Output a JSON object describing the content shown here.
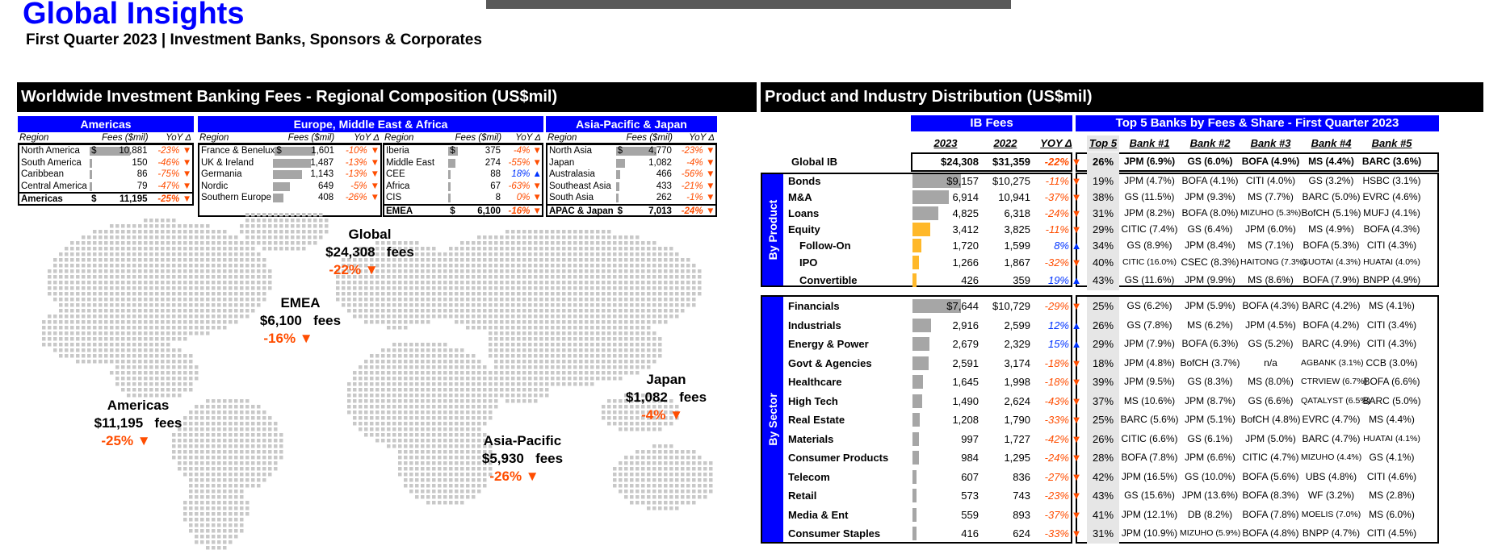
{
  "header": {
    "title": "Global Insights",
    "subtitle": "First Quarter 2023 | Investment Banks, Sponsors & Corporates"
  },
  "left": {
    "section_title": "Worldwide Investment Banking Fees - Regional Composition (US$mil)",
    "groups": {
      "americas": "Americas",
      "emea": "Europe, Middle East & Africa",
      "apac": "Asia-Pacific & Japan"
    },
    "col_headers": {
      "region": "Region",
      "fees": "Fees ($mil)",
      "yoy": "YoY Δ"
    },
    "currency": "$",
    "americas_rows": [
      {
        "name": "North America",
        "fees": "10,881",
        "yoy": "-23%",
        "dir": "down",
        "share": 1.0
      },
      {
        "name": "South America",
        "fees": "150",
        "yoy": "-46%",
        "dir": "down",
        "share": 0.05
      },
      {
        "name": "Caribbean",
        "fees": "86",
        "yoy": "-75%",
        "dir": "down",
        "share": 0.03
      },
      {
        "name": "Central America",
        "fees": "79",
        "yoy": "-47%",
        "dir": "down",
        "share": 0.03
      }
    ],
    "americas_total": {
      "name": "Americas",
      "fees": "11,195",
      "yoy": "-25%",
      "dir": "down"
    },
    "emea_rows_a": [
      {
        "name": "France & Benelux",
        "fees": "1,601",
        "yoy": "-10%",
        "dir": "down",
        "share": 1.0
      },
      {
        "name": "UK & Ireland",
        "fees": "1,487",
        "yoy": "-13%",
        "dir": "down",
        "share": 0.93
      },
      {
        "name": "Germania",
        "fees": "1,143",
        "yoy": "-13%",
        "dir": "down",
        "share": 0.71
      },
      {
        "name": "Nordic",
        "fees": "649",
        "yoy": "-5%",
        "dir": "down",
        "share": 0.41
      },
      {
        "name": "Southern Europe",
        "fees": "408",
        "yoy": "-26%",
        "dir": "down",
        "share": 0.25
      }
    ],
    "emea_rows_b": [
      {
        "name": "Iberia",
        "fees": "375",
        "yoy": "-4%",
        "dir": "down",
        "share": 0.23
      },
      {
        "name": "Middle East",
        "fees": "274",
        "yoy": "-55%",
        "dir": "down",
        "share": 0.17
      },
      {
        "name": "CEE",
        "fees": "88",
        "yoy": "18%",
        "dir": "up",
        "share": 0.06
      },
      {
        "name": "Africa",
        "fees": "67",
        "yoy": "-63%",
        "dir": "down",
        "share": 0.04
      },
      {
        "name": "CIS",
        "fees": "8",
        "yoy": "0%",
        "dir": "down",
        "share": 0.0
      }
    ],
    "emea_total": {
      "name": "EMEA",
      "fees": "6,100",
      "yoy": "-16%",
      "dir": "down"
    },
    "apac_rows": [
      {
        "name": "North Asia",
        "fees": "4,770",
        "yoy": "-23%",
        "dir": "down",
        "share": 1.0
      },
      {
        "name": "Japan",
        "fees": "1,082",
        "yoy": "-4%",
        "dir": "down",
        "share": 0.23
      },
      {
        "name": "Australasia",
        "fees": "466",
        "yoy": "-56%",
        "dir": "down",
        "share": 0.1
      },
      {
        "name": "Southeast Asia",
        "fees": "433",
        "yoy": "-21%",
        "dir": "down",
        "share": 0.09
      },
      {
        "name": "South Asia",
        "fees": "262",
        "yoy": "-1%",
        "dir": "down",
        "share": 0.05
      }
    ],
    "apac_total": {
      "name": "APAC & Japan",
      "fees": "7,013",
      "yoy": "-24%",
      "dir": "down"
    },
    "map_labels": {
      "global": {
        "name": "Global",
        "value": "$24,308",
        "unit": "fees",
        "change": "-22%"
      },
      "emea": {
        "name": "EMEA",
        "value": "$6,100",
        "unit": "fees",
        "change": "-16%"
      },
      "americas": {
        "name": "Americas",
        "value": "$11,195",
        "unit": "fees",
        "change": "-25%"
      },
      "apac": {
        "name": "Asia-Pacific",
        "value": "$5,930",
        "unit": "fees",
        "change": "-26%"
      },
      "japan": {
        "name": "Japan",
        "value": "$1,082",
        "unit": "fees",
        "change": "-4%"
      }
    },
    "arrow_down": "▼",
    "arrow_up": "▲"
  },
  "right": {
    "section_title": "Product and Industry Distribution (US$mil)",
    "ib_fees_header": "IB Fees",
    "top5_header": "Top 5 Banks by Fees & Share - First Quarter 2023",
    "cols": [
      "2023",
      "2022",
      "YOY Δ",
      "Top 5",
      "Bank #1",
      "Bank #2",
      "Bank #3",
      "Bank #4",
      "Bank #5"
    ],
    "global": {
      "label": "Global IB",
      "y2023": "$24,308",
      "y2022": "$31,359",
      "yoy": "-22%",
      "dir": "down",
      "top5": "26%",
      "banks": [
        "JPM (6.9%)",
        "GS (6.0%)",
        "BOFA (4.9%)",
        "MS (4.4%)",
        "BARC (3.6%)"
      ]
    },
    "by_product_label": "By Product",
    "by_sector_label": "By Sector",
    "products": [
      {
        "label": "Bonds",
        "indent": false,
        "y2023": "$9,157",
        "y2022": "$10,275",
        "yoy": "-11%",
        "dir": "down",
        "top5": "19%",
        "share": 1.0,
        "gold": false,
        "banks": [
          "JPM (4.7%)",
          "BOFA (4.1%)",
          "CITI (4.0%)",
          "GS (3.2%)",
          "HSBC (3.1%)"
        ]
      },
      {
        "label": "M&A",
        "indent": false,
        "y2023": "6,914",
        "y2022": "10,941",
        "yoy": "-37%",
        "dir": "down",
        "top5": "38%",
        "share": 0.755,
        "gold": false,
        "banks": [
          "GS (11.5%)",
          "JPM (9.3%)",
          "MS (7.7%)",
          "BARC (5.0%)",
          "EVRC (4.6%)"
        ]
      },
      {
        "label": "Loans",
        "indent": false,
        "y2023": "4,825",
        "y2022": "6,318",
        "yoy": "-24%",
        "dir": "down",
        "top5": "31%",
        "share": 0.527,
        "gold": false,
        "banks": [
          "JPM (8.2%)",
          "BOFA (8.0%)",
          "MIZUHO (5.3%)",
          "BofCH (5.1%)",
          "MUFJ (4.1%)"
        ]
      },
      {
        "label": "Equity",
        "indent": false,
        "y2023": "3,412",
        "y2022": "3,825",
        "yoy": "-11%",
        "dir": "down",
        "top5": "29%",
        "share": 0.373,
        "gold": true,
        "banks": [
          "CITIC (7.4%)",
          "GS (6.4%)",
          "JPM (6.0%)",
          "MS (4.9%)",
          "BOFA (4.3%)"
        ]
      },
      {
        "label": "Follow-On",
        "indent": true,
        "y2023": "1,720",
        "y2022": "1,599",
        "yoy": "8%",
        "dir": "up",
        "top5": "34%",
        "share": 0.188,
        "gold": true,
        "banks": [
          "GS (8.9%)",
          "JPM (8.4%)",
          "MS (7.1%)",
          "BOFA (5.3%)",
          "CITI (4.3%)"
        ]
      },
      {
        "label": "IPO",
        "indent": true,
        "y2023": "1,266",
        "y2022": "1,867",
        "yoy": "-32%",
        "dir": "down",
        "top5": "40%",
        "share": 0.138,
        "gold": true,
        "banks": [
          "CITIC (16.0%)",
          "CSEC (8.3%)",
          "HAITONG (7.3%)",
          "GUOTAI (4.3%)",
          "HUATAI (4.0%)"
        ]
      },
      {
        "label": "Convertible",
        "indent": true,
        "y2023": "426",
        "y2022": "359",
        "yoy": "19%",
        "dir": "up",
        "top5": "43%",
        "share": 0.047,
        "gold": true,
        "banks": [
          "GS (11.6%)",
          "JPM (9.9%)",
          "MS (8.6%)",
          "BOFA (7.9%)",
          "BNPP (4.9%)"
        ]
      }
    ],
    "sectors": [
      {
        "label": "Financials",
        "y2023": "$7,644",
        "y2022": "$10,729",
        "yoy": "-29%",
        "dir": "down",
        "top5": "25%",
        "share": 1.0,
        "banks": [
          "GS (6.2%)",
          "JPM (5.9%)",
          "BOFA (4.3%)",
          "BARC (4.2%)",
          "MS (4.1%)"
        ]
      },
      {
        "label": "Industrials",
        "y2023": "2,916",
        "y2022": "2,599",
        "yoy": "12%",
        "dir": "up",
        "top5": "26%",
        "share": 0.381,
        "banks": [
          "GS (7.8%)",
          "MS (6.2%)",
          "JPM (4.5%)",
          "BOFA (4.2%)",
          "CITI (3.4%)"
        ]
      },
      {
        "label": "Energy & Power",
        "y2023": "2,679",
        "y2022": "2,329",
        "yoy": "15%",
        "dir": "up",
        "top5": "29%",
        "share": 0.35,
        "banks": [
          "JPM (7.9%)",
          "BOFA (6.3%)",
          "GS (5.2%)",
          "BARC (4.9%)",
          "CITI (4.3%)"
        ]
      },
      {
        "label": "Govt & Agencies",
        "y2023": "2,591",
        "y2022": "3,174",
        "yoy": "-18%",
        "dir": "down",
        "top5": "18%",
        "share": 0.339,
        "banks": [
          "JPM (4.8%)",
          "BofCH (3.7%)",
          "n/a",
          "AGBANK (3.1%)",
          "CCB (3.0%)"
        ]
      },
      {
        "label": "Healthcare",
        "y2023": "1,645",
        "y2022": "1,998",
        "yoy": "-18%",
        "dir": "down",
        "top5": "39%",
        "share": 0.215,
        "banks": [
          "JPM (9.5%)",
          "GS (8.3%)",
          "MS (8.0%)",
          "CTRVIEW (6.7%)",
          "BOFA (6.6%)"
        ]
      },
      {
        "label": "High Tech",
        "y2023": "1,490",
        "y2022": "2,624",
        "yoy": "-43%",
        "dir": "down",
        "top5": "37%",
        "share": 0.195,
        "banks": [
          "MS (10.6%)",
          "JPM (8.7%)",
          "GS (6.6%)",
          "QATALYST (6.5%)",
          "BARC (5.0%)"
        ]
      },
      {
        "label": "Real Estate",
        "y2023": "1,208",
        "y2022": "1,790",
        "yoy": "-33%",
        "dir": "down",
        "top5": "25%",
        "share": 0.158,
        "banks": [
          "BARC (5.6%)",
          "JPM (5.1%)",
          "BofCH (4.8%)",
          "EVRC (4.7%)",
          "MS (4.4%)"
        ]
      },
      {
        "label": "Materials",
        "y2023": "997",
        "y2022": "1,727",
        "yoy": "-42%",
        "dir": "down",
        "top5": "26%",
        "share": 0.13,
        "banks": [
          "CITIC (6.6%)",
          "GS (6.1%)",
          "JPM (5.0%)",
          "BARC (4.7%)",
          "HUATAI (4.1%)"
        ]
      },
      {
        "label": "Consumer Products",
        "y2023": "984",
        "y2022": "1,295",
        "yoy": "-24%",
        "dir": "down",
        "top5": "28%",
        "share": 0.129,
        "banks": [
          "BOFA (7.8%)",
          "JPM (6.6%)",
          "CITIC (4.7%)",
          "MIZUHO (4.4%)",
          "GS (4.1%)"
        ]
      },
      {
        "label": "Telecom",
        "y2023": "607",
        "y2022": "836",
        "yoy": "-27%",
        "dir": "down",
        "top5": "42%",
        "share": 0.079,
        "banks": [
          "JPM (16.5%)",
          "GS (10.0%)",
          "BOFA (5.6%)",
          "UBS (4.8%)",
          "CITI (4.6%)"
        ]
      },
      {
        "label": "Retail",
        "y2023": "573",
        "y2022": "743",
        "yoy": "-23%",
        "dir": "down",
        "top5": "43%",
        "share": 0.075,
        "banks": [
          "GS (15.6%)",
          "JPM (13.6%)",
          "BOFA (8.3%)",
          "WF (3.2%)",
          "MS (2.8%)"
        ]
      },
      {
        "label": "Media & Ent",
        "y2023": "559",
        "y2022": "893",
        "yoy": "-37%",
        "dir": "down",
        "top5": "41%",
        "share": 0.073,
        "banks": [
          "JPM (12.1%)",
          "DB (8.2%)",
          "BOFA (7.8%)",
          "MOELIS (7.0%)",
          "MS (6.0%)"
        ]
      },
      {
        "label": "Consumer Staples",
        "y2023": "416",
        "y2022": "624",
        "yoy": "-33%",
        "dir": "down",
        "top5": "31%",
        "share": 0.054,
        "banks": [
          "JPM (10.9%)",
          "MIZUHO (5.9%)",
          "BOFA (4.8%)",
          "BNPP (4.7%)",
          "CITI (4.5%)"
        ]
      }
    ]
  },
  "colors": {
    "accent_blue": "#0000ff",
    "negative": "#ff4d00",
    "positive": "#0033ff",
    "bar_gray": "#a6a6a6",
    "bar_gold": "#ffb829"
  }
}
